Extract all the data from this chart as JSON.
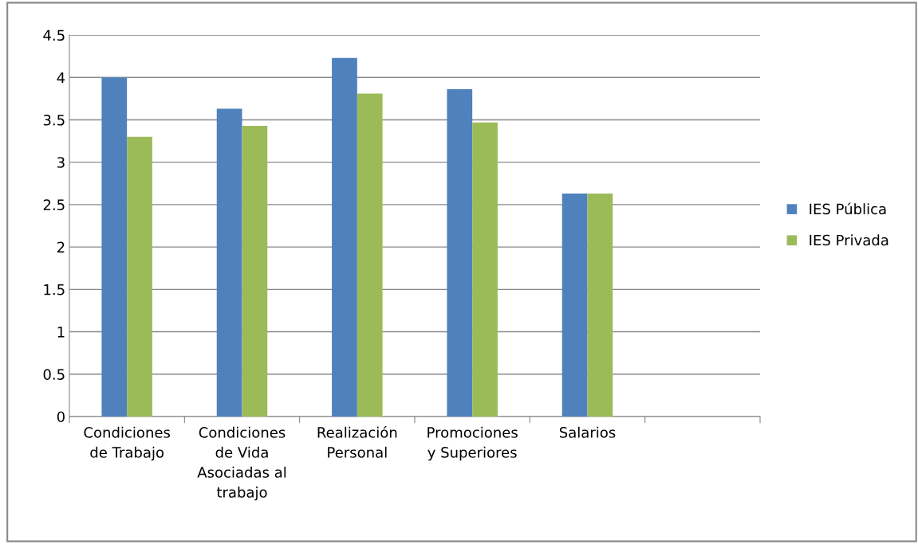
{
  "chart_data": {
    "type": "bar",
    "categories": [
      "Condiciones\nde Trabajo",
      "Condiciones\nde Vida\nAsociadas al\ntrabajo",
      "Realización\nPersonal",
      "Promociones\ny Superiores",
      "Salarios",
      null
    ],
    "series": [
      {
        "name": "IES Pública",
        "color": "#4f81bd",
        "values": [
          4.0,
          3.63,
          4.23,
          3.86,
          2.63,
          null
        ]
      },
      {
        "name": "IES Privada",
        "color": "#9bbb59",
        "values": [
          3.3,
          3.43,
          3.81,
          3.47,
          2.63,
          null
        ]
      }
    ],
    "ylim": [
      0,
      4.5
    ],
    "yticks": [
      0,
      {
        "value": 0.5,
        "label": "0.5"
      },
      1,
      1.5,
      2,
      2.5,
      3,
      3.5,
      4,
      4.5
    ],
    "grid": "y",
    "legend": "right"
  }
}
